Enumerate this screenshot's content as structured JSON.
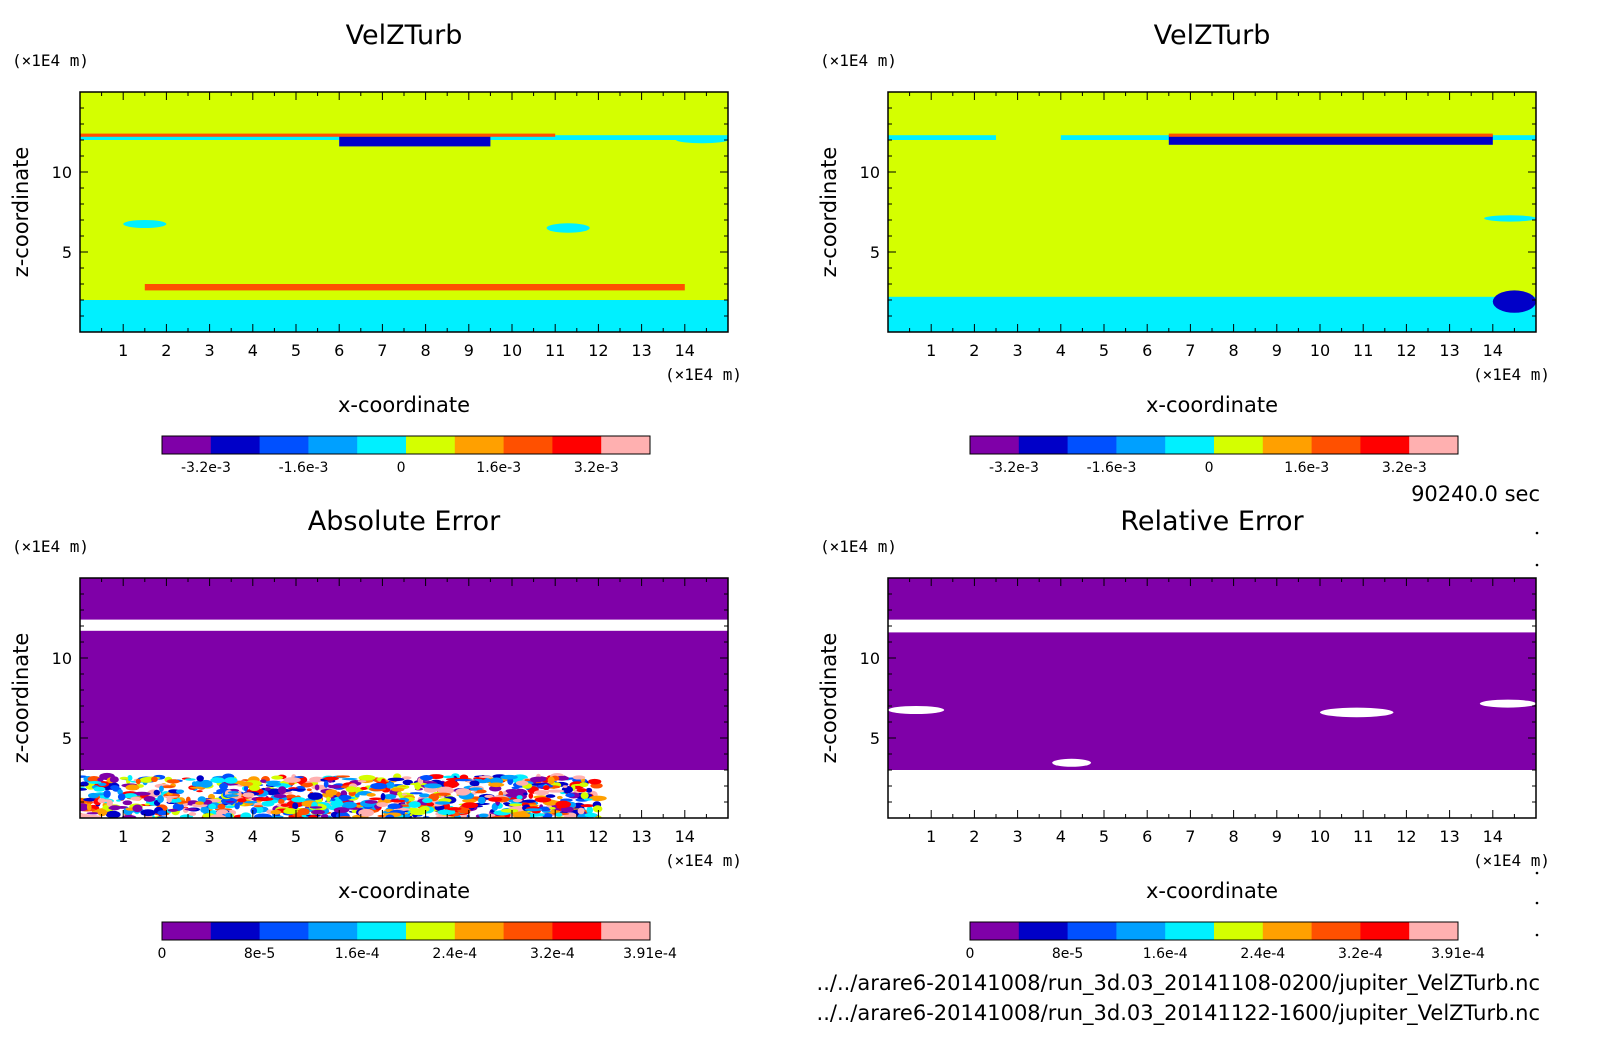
{
  "footer": {
    "time": "90240.0 sec",
    "file1": "../../arare6-20141008/run_3d.03_20141108-0200/jupiter_VelZTurb.nc",
    "file2": "../../arare6-20141008/run_3d.03_20141122-1600/jupiter_VelZTurb.nc"
  },
  "chart_data": [
    {
      "type": "heatmap",
      "title": "VelZTurb",
      "xlabel": "x-coordinate",
      "ylabel": "z-coordinate",
      "x_unit": "(×1E4 m)",
      "y_unit": "(×1E4 m)",
      "xlim": [
        0,
        15
      ],
      "ylim": [
        0,
        15
      ],
      "x_ticks": [
        "1",
        "2",
        "3",
        "4",
        "5",
        "6",
        "7",
        "8",
        "9",
        "10",
        "11",
        "12",
        "13",
        "14"
      ],
      "y_ticks": [
        "5",
        "10"
      ],
      "colorbar": {
        "colors": [
          "#7f00a8",
          "#0000c8",
          "#0050ff",
          "#00a0ff",
          "#00f0ff",
          "#d4ff00",
          "#ffa000",
          "#ff5000",
          "#ff0000",
          "#ffb0b0"
        ],
        "labels": [
          "-3.2e-3",
          "-1.6e-3",
          "0",
          "1.6e-3",
          "3.2e-3"
        ]
      },
      "background": "#d4ff00",
      "features": [
        {
          "kind": "band",
          "x": [
            0,
            15
          ],
          "y": [
            12.0,
            12.3
          ],
          "color": "#00f0ff"
        },
        {
          "kind": "band",
          "x": [
            6,
            9.5
          ],
          "y": [
            11.6,
            12.3
          ],
          "color": "#0000c8"
        },
        {
          "kind": "band",
          "x": [
            0,
            11
          ],
          "y": [
            12.2,
            12.4
          ],
          "color": "#ff5000"
        },
        {
          "kind": "blob",
          "x": [
            1,
            2
          ],
          "y": [
            6.5,
            7.0
          ],
          "color": "#00f0ff"
        },
        {
          "kind": "blob",
          "x": [
            10.8,
            11.8
          ],
          "y": [
            6.2,
            6.8
          ],
          "color": "#00f0ff"
        },
        {
          "kind": "blob",
          "x": [
            13.8,
            15
          ],
          "y": [
            11.8,
            12.2
          ],
          "color": "#00f0ff"
        },
        {
          "kind": "band",
          "x": [
            0,
            15
          ],
          "y": [
            0,
            2.0
          ],
          "color": "#00f0ff"
        },
        {
          "kind": "band",
          "x": [
            1.5,
            14
          ],
          "y": [
            2.6,
            3.0
          ],
          "color": "#ff5000"
        }
      ]
    },
    {
      "type": "heatmap",
      "title": "VelZTurb",
      "xlabel": "x-coordinate",
      "ylabel": "z-coordinate",
      "x_unit": "(×1E4 m)",
      "y_unit": "(×1E4 m)",
      "xlim": [
        0,
        15
      ],
      "ylim": [
        0,
        15
      ],
      "x_ticks": [
        "1",
        "2",
        "3",
        "4",
        "5",
        "6",
        "7",
        "8",
        "9",
        "10",
        "11",
        "12",
        "13",
        "14"
      ],
      "y_ticks": [
        "5",
        "10"
      ],
      "colorbar": {
        "colors": [
          "#7f00a8",
          "#0000c8",
          "#0050ff",
          "#00a0ff",
          "#00f0ff",
          "#d4ff00",
          "#ffa000",
          "#ff5000",
          "#ff0000",
          "#ffb0b0"
        ],
        "labels": [
          "-3.2e-3",
          "-1.6e-3",
          "0",
          "1.6e-3",
          "3.2e-3"
        ]
      },
      "background": "#d4ff00",
      "features": [
        {
          "kind": "band",
          "x": [
            0,
            2.5
          ],
          "y": [
            12.0,
            12.3
          ],
          "color": "#00f0ff"
        },
        {
          "kind": "band",
          "x": [
            4,
            15
          ],
          "y": [
            12.0,
            12.3
          ],
          "color": "#00f0ff"
        },
        {
          "kind": "band",
          "x": [
            6.5,
            14
          ],
          "y": [
            11.7,
            12.3
          ],
          "color": "#0000c8"
        },
        {
          "kind": "band",
          "x": [
            6.5,
            14
          ],
          "y": [
            12.2,
            12.4
          ],
          "color": "#ff5000"
        },
        {
          "kind": "blob",
          "x": [
            13.8,
            15
          ],
          "y": [
            6.9,
            7.3
          ],
          "color": "#00f0ff"
        },
        {
          "kind": "band",
          "x": [
            0,
            15
          ],
          "y": [
            0,
            2.2
          ],
          "color": "#00f0ff"
        },
        {
          "kind": "blob",
          "x": [
            14,
            15
          ],
          "y": [
            1.2,
            2.6
          ],
          "color": "#0000c8"
        }
      ]
    },
    {
      "type": "heatmap",
      "title": "Absolute Error",
      "xlabel": "x-coordinate",
      "ylabel": "z-coordinate",
      "x_unit": "(×1E4 m)",
      "y_unit": "(×1E4 m)",
      "xlim": [
        0,
        15
      ],
      "ylim": [
        0,
        15
      ],
      "x_ticks": [
        "1",
        "2",
        "3",
        "4",
        "5",
        "6",
        "7",
        "8",
        "9",
        "10",
        "11",
        "12",
        "13",
        "14"
      ],
      "y_ticks": [
        "5",
        "10"
      ],
      "colorbar": {
        "colors": [
          "#7f00a8",
          "#0000c8",
          "#0050ff",
          "#00a0ff",
          "#00f0ff",
          "#d4ff00",
          "#ffa000",
          "#ff5000",
          "#ff0000",
          "#ffb0b0"
        ],
        "labels": [
          "0",
          "8e-5",
          "1.6e-4",
          "2.4e-4",
          "3.2e-4",
          "3.91e-4"
        ]
      },
      "background": "#7f00a8",
      "features": [
        {
          "kind": "band",
          "x": [
            0,
            15
          ],
          "y": [
            11.7,
            12.4
          ],
          "color": "#ffffff"
        },
        {
          "kind": "band",
          "x": [
            0,
            15
          ],
          "y": [
            0,
            3.0
          ],
          "color": "#ffffff"
        },
        {
          "kind": "noise",
          "x": [
            0,
            12
          ],
          "y": [
            0,
            2.6
          ],
          "color": "mixed"
        }
      ]
    },
    {
      "type": "heatmap",
      "title": "Relative Error",
      "xlabel": "x-coordinate",
      "ylabel": "z-coordinate",
      "x_unit": "(×1E4 m)",
      "y_unit": "(×1E4 m)",
      "xlim": [
        0,
        15
      ],
      "ylim": [
        0,
        15
      ],
      "x_ticks": [
        "1",
        "2",
        "3",
        "4",
        "5",
        "6",
        "7",
        "8",
        "9",
        "10",
        "11",
        "12",
        "13",
        "14"
      ],
      "y_ticks": [
        "5",
        "10"
      ],
      "colorbar": {
        "colors": [
          "#7f00a8",
          "#0000c8",
          "#0050ff",
          "#00a0ff",
          "#00f0ff",
          "#d4ff00",
          "#ffa000",
          "#ff5000",
          "#ff0000",
          "#ffb0b0"
        ],
        "labels": [
          "0",
          "8e-5",
          "1.6e-4",
          "2.4e-4",
          "3.2e-4",
          "3.91e-4"
        ]
      },
      "background": "#7f00a8",
      "features": [
        {
          "kind": "band",
          "x": [
            0,
            15
          ],
          "y": [
            11.6,
            12.4
          ],
          "color": "#ffffff"
        },
        {
          "kind": "band",
          "x": [
            0,
            15
          ],
          "y": [
            0,
            3.0
          ],
          "color": "#ffffff"
        },
        {
          "kind": "blob",
          "x": [
            0,
            1.3
          ],
          "y": [
            6.5,
            7.0
          ],
          "color": "#ffffff"
        },
        {
          "kind": "blob",
          "x": [
            10.0,
            11.7
          ],
          "y": [
            6.3,
            6.9
          ],
          "color": "#ffffff"
        },
        {
          "kind": "blob",
          "x": [
            13.7,
            15
          ],
          "y": [
            6.9,
            7.4
          ],
          "color": "#ffffff"
        },
        {
          "kind": "blob",
          "x": [
            3.8,
            4.7
          ],
          "y": [
            3.2,
            3.7
          ],
          "color": "#ffffff"
        }
      ]
    }
  ]
}
